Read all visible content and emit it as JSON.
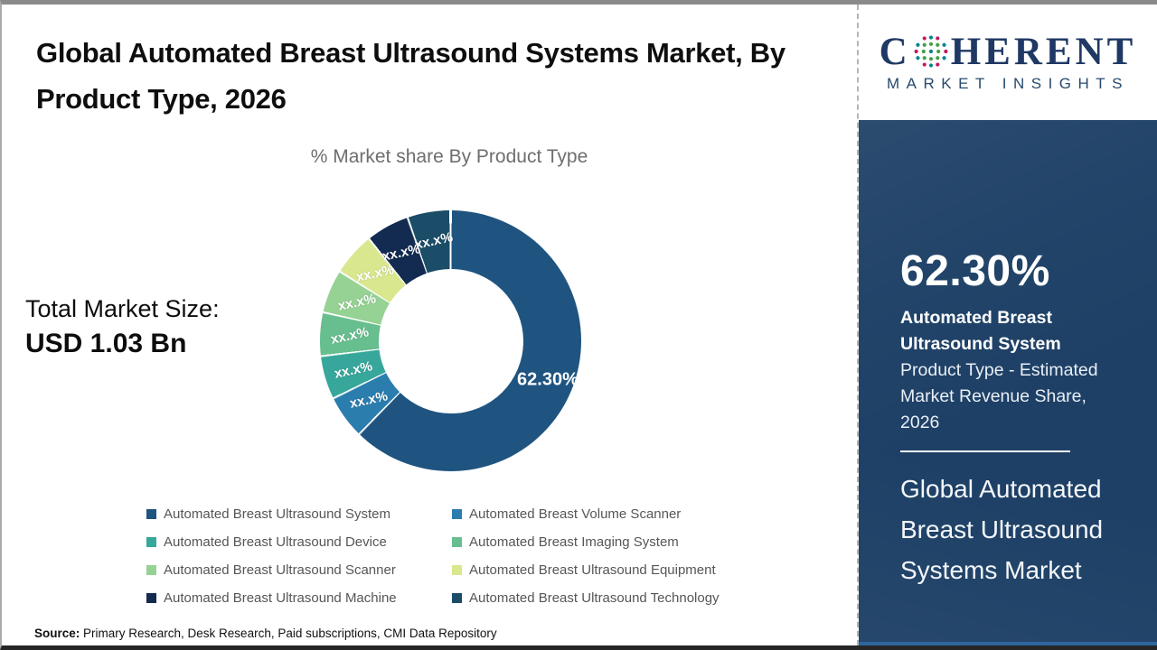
{
  "page": {
    "title": "Global Automated Breast Ultrasound Systems Market, By Product Type, 2026",
    "subtitle": "% Market share By Product Type",
    "total_market_label": "Total Market Size:",
    "total_market_value": "USD 1.03 Bn",
    "source_label": "Source:",
    "source_text": " Primary Research, Desk Research, Paid subscriptions, CMI Data Repository"
  },
  "chart_data": {
    "type": "pie",
    "donut": true,
    "title": "% Market share By Product Type",
    "annotation": "Total Market Size: USD 1.03 Bn",
    "legend_position": "bottom",
    "categories": [
      "Automated Breast Ultrasound System",
      "Automated Breast Volume Scanner",
      "Automated Breast Ultrasound Device",
      "Automated Breast Imaging System",
      "Automated Breast Ultrasound Scanner",
      "Automated Breast Ultrasound Equipment",
      "Automated Breast Ultrasound Machine",
      "Automated Breast Ultrasound Technology"
    ],
    "values": [
      62.3,
      5.39,
      5.39,
      5.39,
      5.39,
      5.38,
      5.38,
      5.38
    ],
    "labels": [
      "62.30%",
      "xx.x%",
      "xx.x%",
      "xx.x%",
      "xx.x%",
      "xx.x%",
      "xx.x%",
      "xx.x%"
    ],
    "colors": [
      "#1F5480",
      "#2B7DAE",
      "#38A79B",
      "#67BE8E",
      "#95D293",
      "#D9E78E",
      "#132B50",
      "#1B4D68"
    ]
  },
  "sidebar": {
    "logo": {
      "text_c": "C",
      "text_rest": "HERENT",
      "subtext": "MARKET INSIGHTS"
    },
    "highlight_value": "62.30%",
    "highlight_bold": "Automated Breast\nUltrasound System",
    "highlight_desc": "Product Type - Estimated\nMarket Revenue Share,\n2026",
    "market_name": "Global Automated\nBreast Ultrasound\nSystems Market",
    "colors": {
      "background": "#1E4066",
      "accent_line": "#2E66A0"
    }
  }
}
